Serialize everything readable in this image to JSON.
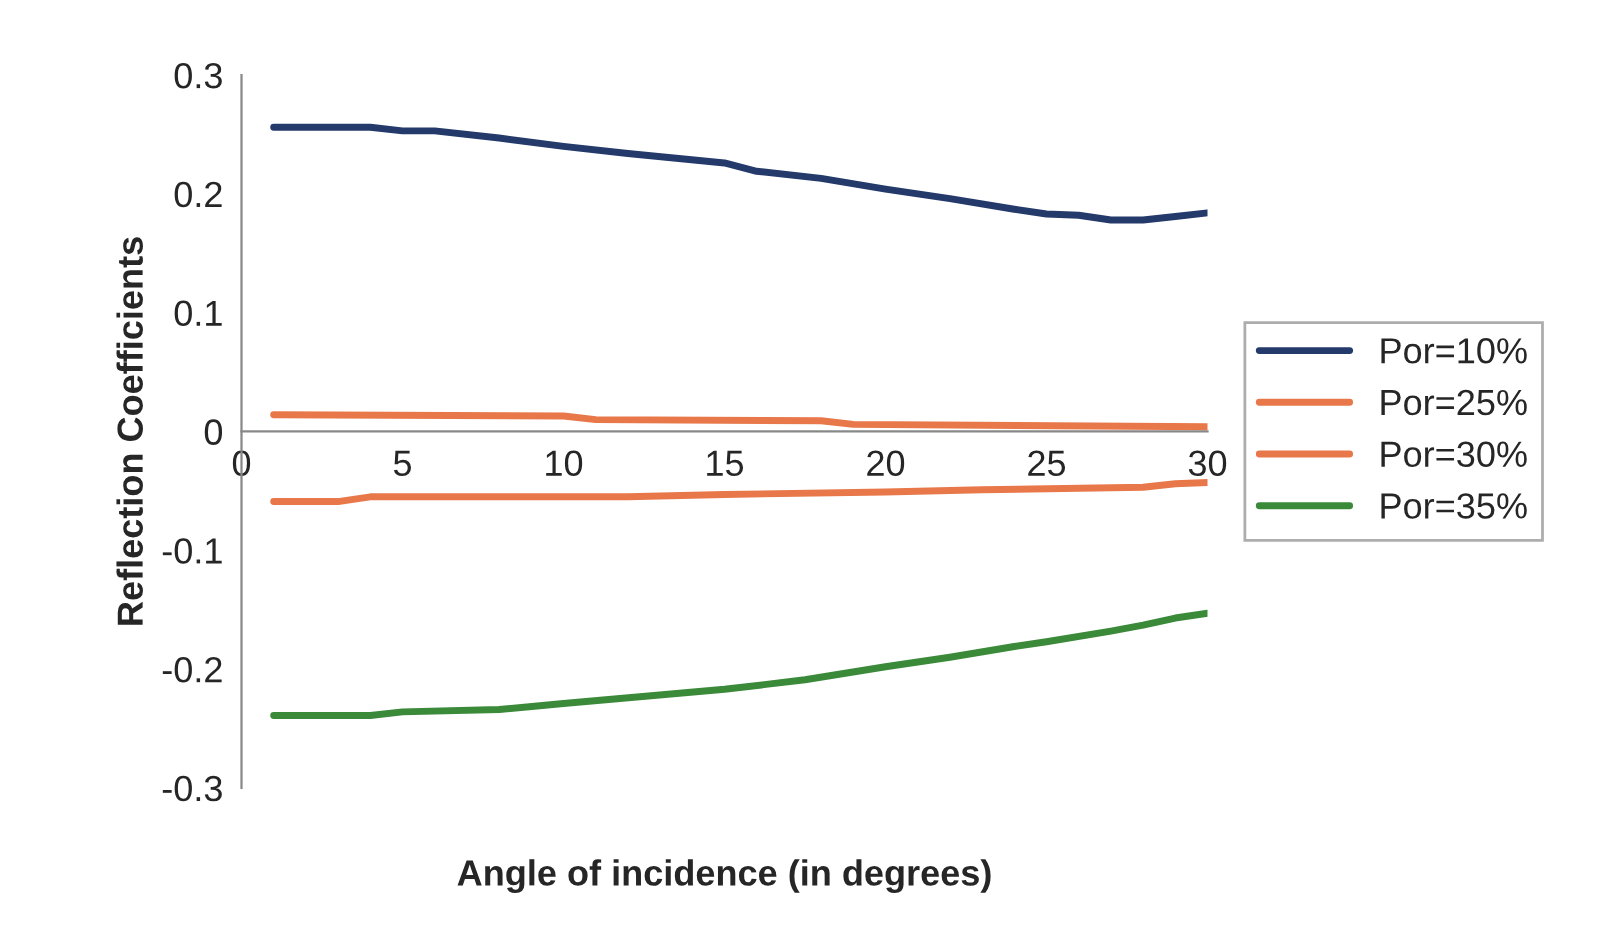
{
  "chart_data": {
    "type": "line",
    "xlabel": "Angle of incidence (in degrees)",
    "ylabel": "Reflection Coefficients",
    "series": [
      {
        "name": "Por=10%",
        "color": "#243a6b",
        "x": [
          1,
          4,
          5,
          6,
          8,
          10,
          12,
          15,
          16,
          18,
          20,
          22,
          24,
          25,
          26,
          27,
          28,
          29,
          30
        ],
        "values": [
          0.256,
          0.256,
          0.253,
          0.253,
          0.247,
          0.24,
          0.234,
          0.226,
          0.219,
          0.213,
          0.204,
          0.196,
          0.187,
          0.183,
          0.182,
          0.178,
          0.178,
          0.181,
          0.184
        ]
      },
      {
        "name": "Por=25%",
        "color": "#e8784a",
        "x": [
          1,
          10,
          11,
          18,
          19,
          30
        ],
        "values": [
          0.014,
          0.013,
          0.01,
          0.009,
          0.006,
          0.004
        ]
      },
      {
        "name": "Por=30%",
        "color": "#e8784a",
        "x": [
          1,
          3,
          4,
          12,
          15,
          20,
          23,
          28,
          29,
          30
        ],
        "values": [
          -0.059,
          -0.059,
          -0.055,
          -0.055,
          -0.053,
          -0.051,
          -0.049,
          -0.047,
          -0.044,
          -0.043
        ]
      },
      {
        "name": "Por=35%",
        "color": "#3a8a3a",
        "x": [
          1,
          4,
          5,
          8,
          10,
          15,
          17.5,
          20,
          22,
          24,
          25,
          27,
          28,
          29,
          30
        ],
        "values": [
          -0.239,
          -0.239,
          -0.236,
          -0.234,
          -0.229,
          -0.217,
          -0.209,
          -0.198,
          -0.19,
          -0.181,
          -0.177,
          -0.168,
          -0.163,
          -0.157,
          -0.153
        ]
      }
    ],
    "xlim": [
      0,
      30
    ],
    "xticks": [
      0,
      5,
      10,
      15,
      20,
      25,
      30
    ],
    "ylim": [
      -0.3,
      0.3
    ],
    "yticks": [
      -0.3,
      -0.2,
      -0.1,
      0,
      0.1,
      0.2,
      0.3
    ],
    "grid": false,
    "legend": "right",
    "marker": "none",
    "line_style": "solid"
  }
}
